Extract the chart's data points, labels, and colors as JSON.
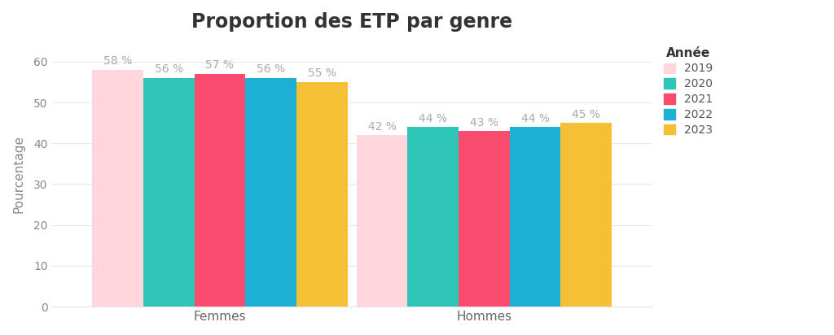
{
  "title": "Proportion des ETP par genre",
  "ylabel": "Pourcentage",
  "categories": [
    "Femmes",
    "Hommes"
  ],
  "years": [
    "2019",
    "2020",
    "2021",
    "2022",
    "2023"
  ],
  "colors": [
    "#FFD6DC",
    "#2EC4B6",
    "#F84B6E",
    "#1EB0D4",
    "#F5C035"
  ],
  "values": {
    "Femmes": [
      58,
      56,
      57,
      56,
      55
    ],
    "Hommes": [
      42,
      44,
      43,
      44,
      45
    ]
  },
  "ylim": [
    0,
    65
  ],
  "yticks": [
    0,
    10,
    20,
    30,
    40,
    50,
    60
  ],
  "background_color": "#ffffff",
  "grid_color": "#e8e8e8",
  "label_color": "#aaaaaa",
  "title_fontsize": 17,
  "axis_fontsize": 11,
  "tick_fontsize": 10,
  "bar_label_fontsize": 10,
  "legend_title": "Année",
  "bar_width": 0.085,
  "group_centers": [
    0.28,
    0.72
  ]
}
